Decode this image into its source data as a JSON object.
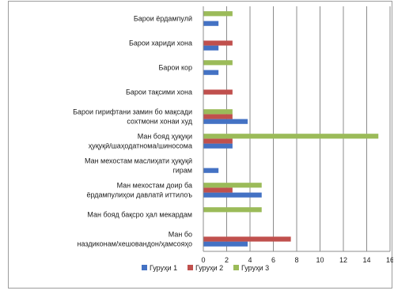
{
  "chart_data": {
    "type": "bar",
    "orientation": "horizontal",
    "categories": [
      [
        "Барои ёрдампулӣ"
      ],
      [
        "Барои хариди хона"
      ],
      [
        "Барои кор"
      ],
      [
        "Барои тақсими хона"
      ],
      [
        "Барои гирифтани замин бо мақсади",
        "сохтмони хонаи худ"
      ],
      [
        "Ман бояд ҳуқуқи",
        "ҳуқуқӣ/шаҳодатнома/шиносома"
      ],
      [
        "Ман мехостам маслиҳати ҳуқуқӣ",
        "гирам"
      ],
      [
        "Ман мехостам доир ба",
        "ёрдампулиҳои давлатӣ иттилоъ"
      ],
      [
        "Ман бояд бақсро ҳал мекардам"
      ],
      [
        "Ман бо",
        "наздиконам/хешовандон/ҳамсояҳо"
      ]
    ],
    "series": [
      {
        "name": "Гуруҳи 1",
        "color": "#4472C4",
        "values": [
          1.3,
          1.3,
          1.3,
          0,
          3.8,
          2.5,
          1.3,
          5.0,
          0,
          3.8
        ]
      },
      {
        "name": "Гуруҳи 2",
        "color": "#C0504D",
        "values": [
          0,
          2.5,
          0,
          2.5,
          2.5,
          2.5,
          0,
          2.5,
          0,
          7.5
        ]
      },
      {
        "name": "Гуруҳи 3",
        "color": "#9BBB59",
        "values": [
          2.5,
          0,
          2.5,
          0,
          2.5,
          15.0,
          0,
          5.0,
          5.0,
          0
        ]
      }
    ],
    "x_ticks": [
      "0",
      "2",
      "4",
      "6",
      "8",
      "10",
      "12",
      "14",
      "16"
    ],
    "xlim": [
      0,
      16
    ],
    "grid": "vertical",
    "legend": "bottom"
  }
}
